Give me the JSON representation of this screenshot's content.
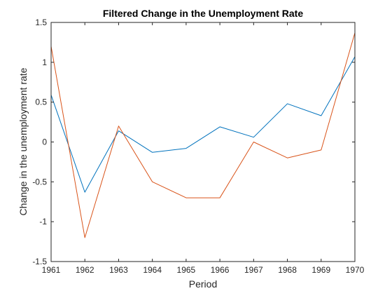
{
  "chart_data": {
    "type": "line",
    "title": "Filtered Change in the Unemployment Rate",
    "xlabel": "Period",
    "ylabel": "Change in the unemployment rate",
    "x": [
      1961,
      1962,
      1963,
      1964,
      1965,
      1966,
      1967,
      1968,
      1969,
      1970
    ],
    "xlim": [
      1961,
      1970
    ],
    "ylim": [
      -1.5,
      1.5
    ],
    "xticks": [
      "1961",
      "1962",
      "1963",
      "1964",
      "1965",
      "1966",
      "1967",
      "1968",
      "1969",
      "1970"
    ],
    "yticks": [
      "-1.5",
      "-1",
      "-0.5",
      "0",
      "0.5",
      "1",
      "1.5"
    ],
    "ytick_values": [
      -1.5,
      -1,
      -0.5,
      0,
      0.5,
      1,
      1.5
    ],
    "grid": false,
    "legend": "none",
    "series": [
      {
        "values": [
          0.59,
          -0.63,
          0.14,
          -0.13,
          -0.08,
          0.19,
          0.06,
          0.48,
          0.33,
          1.07
        ],
        "color": "#0072BD"
      },
      {
        "values": [
          1.2,
          -1.2,
          0.2,
          -0.5,
          -0.7,
          -0.7,
          0.0,
          -0.2,
          -0.1,
          1.37
        ],
        "color": "#D95319"
      }
    ],
    "axis_color": "#262626"
  }
}
